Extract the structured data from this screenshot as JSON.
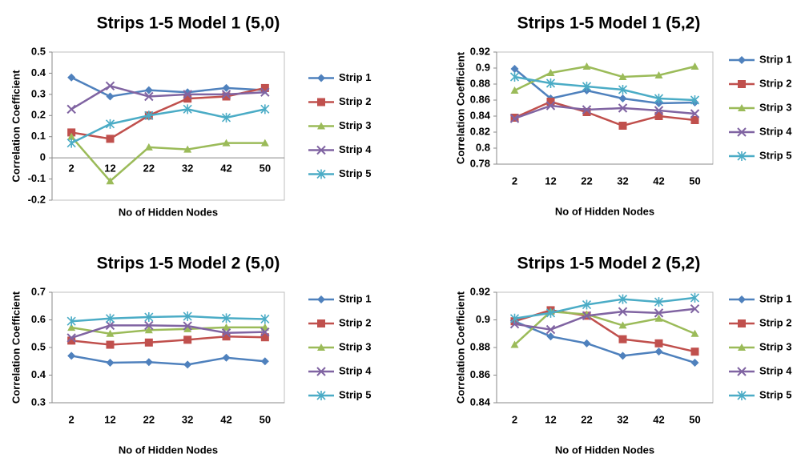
{
  "chart_data": [
    {
      "type": "line",
      "title": "Strips 1-5 Model 1 (5,0)",
      "x_label": "No of Hidden Nodes",
      "y_label": "Correlation Coefficient",
      "categories": [
        "2",
        "12",
        "22",
        "32",
        "42",
        "50"
      ],
      "ylim": [
        -0.2,
        0.5
      ],
      "yticks": [
        -0.2,
        -0.1,
        0,
        0.1,
        0.2,
        0.3,
        0.4,
        0.5
      ],
      "grid": false,
      "series": [
        {
          "name": "Strip 1",
          "color": "#4f81bd",
          "marker": "diamond",
          "values": [
            0.38,
            0.29,
            0.32,
            0.31,
            0.33,
            0.32
          ]
        },
        {
          "name": "Strip 2",
          "color": "#c0504d",
          "marker": "square",
          "values": [
            0.12,
            0.09,
            0.2,
            0.28,
            0.29,
            0.33
          ]
        },
        {
          "name": "Strip 3",
          "color": "#9bbb59",
          "marker": "triangle",
          "values": [
            0.1,
            -0.11,
            0.05,
            0.04,
            0.07,
            0.07
          ]
        },
        {
          "name": "Strip 4",
          "color": "#8064a2",
          "marker": "x",
          "values": [
            0.23,
            0.34,
            0.29,
            0.3,
            0.3,
            0.31
          ]
        },
        {
          "name": "Strip 5",
          "color": "#4bacc6",
          "marker": "star",
          "values": [
            0.07,
            0.16,
            0.2,
            0.23,
            0.19,
            0.23
          ]
        }
      ]
    },
    {
      "type": "line",
      "title": "Strips 1-5 Model 1 (5,2)",
      "x_label": "No of Hidden Nodes",
      "y_label": "Correlation Coefficient",
      "categories": [
        "2",
        "12",
        "22",
        "32",
        "42",
        "50"
      ],
      "ylim": [
        0.78,
        0.92
      ],
      "yticks": [
        0.78,
        0.8,
        0.82,
        0.84,
        0.86,
        0.88,
        0.9,
        0.92
      ],
      "grid": false,
      "series": [
        {
          "name": "Strip 1",
          "color": "#4f81bd",
          "marker": "diamond",
          "values": [
            0.899,
            0.862,
            0.872,
            0.862,
            0.856,
            0.857
          ]
        },
        {
          "name": "Strip 2",
          "color": "#c0504d",
          "marker": "square",
          "values": [
            0.838,
            0.858,
            0.845,
            0.828,
            0.84,
            0.835
          ]
        },
        {
          "name": "Strip 3",
          "color": "#9bbb59",
          "marker": "triangle",
          "values": [
            0.872,
            0.894,
            0.902,
            0.889,
            0.891,
            0.902
          ]
        },
        {
          "name": "Strip 4",
          "color": "#8064a2",
          "marker": "x",
          "values": [
            0.837,
            0.853,
            0.848,
            0.85,
            0.847,
            0.843
          ]
        },
        {
          "name": "Strip 5",
          "color": "#4bacc6",
          "marker": "star",
          "values": [
            0.889,
            0.881,
            0.877,
            0.873,
            0.862,
            0.86
          ]
        }
      ]
    },
    {
      "type": "line",
      "title": "Strips 1-5 Model 2 (5,0)",
      "x_label": "No of Hidden Nodes",
      "y_label": "Correlation Coefficient",
      "categories": [
        "2",
        "12",
        "22",
        "32",
        "42",
        "50"
      ],
      "ylim": [
        0.3,
        0.7
      ],
      "yticks": [
        0.3,
        0.4,
        0.5,
        0.6,
        0.7
      ],
      "grid": false,
      "series": [
        {
          "name": "Strip 1",
          "color": "#4f81bd",
          "marker": "diamond",
          "values": [
            0.47,
            0.445,
            0.447,
            0.438,
            0.463,
            0.45
          ]
        },
        {
          "name": "Strip 2",
          "color": "#c0504d",
          "marker": "square",
          "values": [
            0.525,
            0.51,
            0.518,
            0.528,
            0.54,
            0.537
          ]
        },
        {
          "name": "Strip 3",
          "color": "#9bbb59",
          "marker": "triangle",
          "values": [
            0.572,
            0.55,
            0.563,
            0.567,
            0.573,
            0.573
          ]
        },
        {
          "name": "Strip 4",
          "color": "#8064a2",
          "marker": "x",
          "values": [
            0.535,
            0.58,
            0.58,
            0.578,
            0.553,
            0.556
          ]
        },
        {
          "name": "Strip 5",
          "color": "#4bacc6",
          "marker": "star",
          "values": [
            0.595,
            0.605,
            0.61,
            0.613,
            0.606,
            0.603
          ]
        }
      ]
    },
    {
      "type": "line",
      "title": "Strips 1-5 Model 2 (5,2)",
      "x_label": "No of Hidden Nodes",
      "y_label": "Correlation Coefficient",
      "categories": [
        "2",
        "12",
        "22",
        "32",
        "42",
        "50"
      ],
      "ylim": [
        0.84,
        0.92
      ],
      "yticks": [
        0.84,
        0.86,
        0.88,
        0.9,
        0.92
      ],
      "grid": false,
      "series": [
        {
          "name": "Strip 1",
          "color": "#4f81bd",
          "marker": "diamond",
          "values": [
            0.899,
            0.888,
            0.883,
            0.874,
            0.877,
            0.869
          ]
        },
        {
          "name": "Strip 2",
          "color": "#c0504d",
          "marker": "square",
          "values": [
            0.899,
            0.907,
            0.903,
            0.886,
            0.883,
            0.877
          ]
        },
        {
          "name": "Strip 3",
          "color": "#9bbb59",
          "marker": "triangle",
          "values": [
            0.882,
            0.906,
            0.904,
            0.896,
            0.901,
            0.89
          ]
        },
        {
          "name": "Strip 4",
          "color": "#8064a2",
          "marker": "x",
          "values": [
            0.897,
            0.893,
            0.903,
            0.906,
            0.905,
            0.908
          ]
        },
        {
          "name": "Strip 5",
          "color": "#4bacc6",
          "marker": "star",
          "values": [
            0.901,
            0.905,
            0.911,
            0.915,
            0.913,
            0.916
          ]
        }
      ]
    }
  ]
}
